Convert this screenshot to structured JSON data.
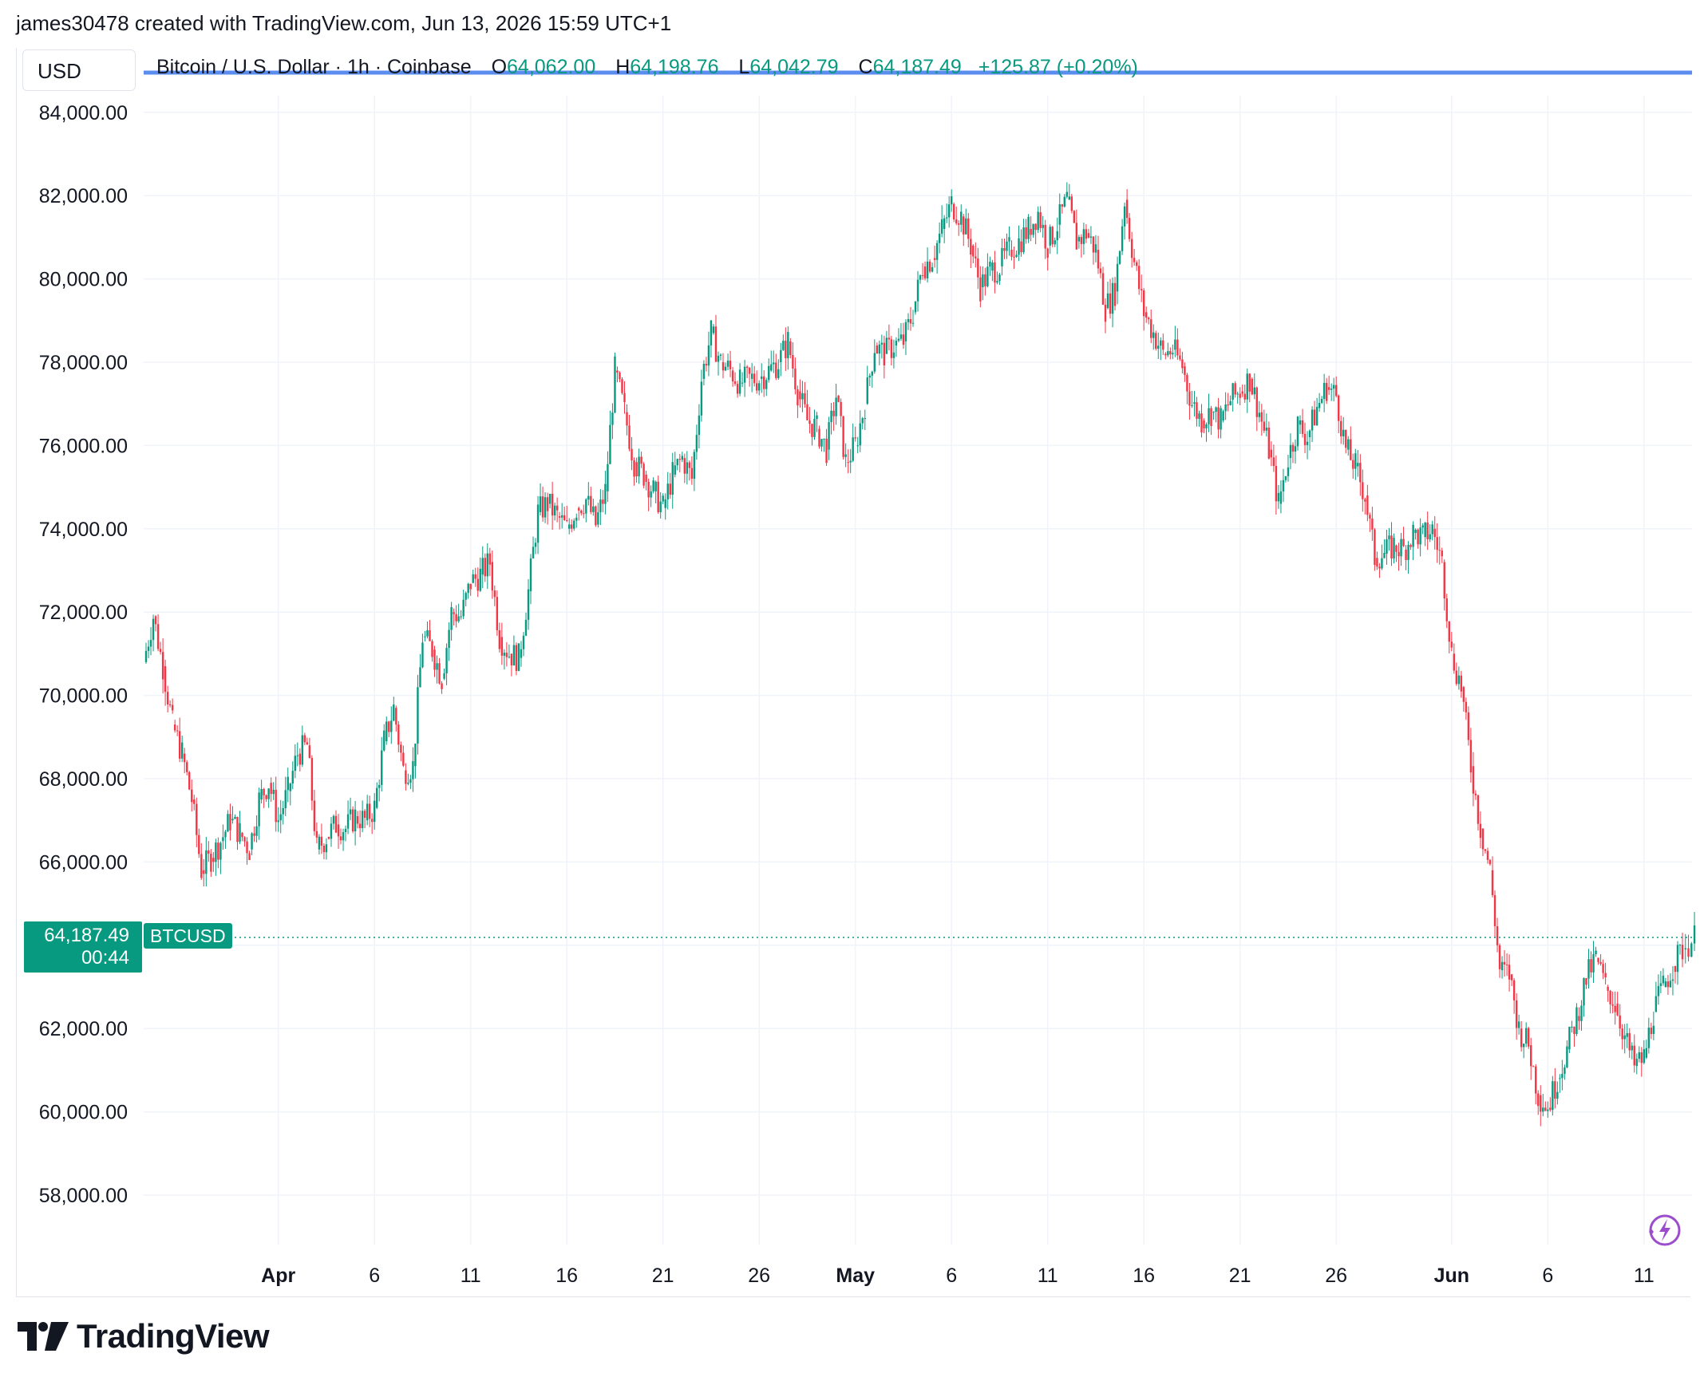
{
  "header": {
    "attribution": "james30478 created with TradingView.com, Jun 13, 2026 15:59 UTC+1"
  },
  "currency_label": "USD",
  "legend": {
    "symbol_name": "Bitcoin / U.S. Dollar · 1h · Coinbase",
    "open_label": "O",
    "open": "64,062.00",
    "high_label": "H",
    "high": "64,198.76",
    "low_label": "L",
    "low": "64,042.79",
    "close_label": "C",
    "close": "64,187.49",
    "change": "+125.87 (+0.20%)"
  },
  "price_tag": {
    "price": "64,187.49",
    "countdown": "00:44",
    "symbol": "BTCUSD"
  },
  "brand": {
    "name": "TradingView"
  },
  "colors": {
    "up": "#089981",
    "down": "#f23645",
    "price_line": "#089981",
    "header_line": "#5b8def",
    "grid": "#f0f3fa"
  },
  "chart_data": {
    "type": "candlestick",
    "interval": "1h",
    "ylim": [
      56500,
      85000
    ],
    "y_ticks": [
      58000,
      60000,
      62000,
      64000,
      66000,
      68000,
      70000,
      72000,
      74000,
      76000,
      78000,
      80000,
      82000,
      84000
    ],
    "y_tick_labels": [
      "58,000.00",
      "60,000.00",
      "62,000.00",
      "",
      "66,000.00",
      "68,000.00",
      "70,000.00",
      "72,000.00",
      "74,000.00",
      "76,000.00",
      "78,000.00",
      "80,000.00",
      "82,000.00",
      "84,000.00"
    ],
    "x_ticks": [
      {
        "date": "2026-04-01",
        "label": "Apr"
      },
      {
        "date": "2026-04-06",
        "label": "6"
      },
      {
        "date": "2026-04-11",
        "label": "11"
      },
      {
        "date": "2026-04-16",
        "label": "16"
      },
      {
        "date": "2026-04-21",
        "label": "21"
      },
      {
        "date": "2026-04-26",
        "label": "26"
      },
      {
        "date": "2026-05-01",
        "label": "May"
      },
      {
        "date": "2026-05-06",
        "label": "6"
      },
      {
        "date": "2026-05-11",
        "label": "11"
      },
      {
        "date": "2026-05-16",
        "label": "16"
      },
      {
        "date": "2026-05-21",
        "label": "21"
      },
      {
        "date": "2026-05-26",
        "label": "26"
      },
      {
        "date": "2026-06-01",
        "label": "Jun"
      },
      {
        "date": "2026-06-06",
        "label": "6"
      },
      {
        "date": "2026-06-11",
        "label": "11"
      }
    ],
    "x_range": [
      "2026-03-25",
      "2026-06-13"
    ],
    "last_price": 64187.49,
    "series_path": [
      {
        "date": "2026-03-25",
        "close": 70800
      },
      {
        "date": "2026-03-25T12:00",
        "close": 71900
      },
      {
        "date": "2026-03-26",
        "close": 70700
      },
      {
        "date": "2026-03-26T12:00",
        "close": 69300
      },
      {
        "date": "2026-03-27",
        "close": 68600
      },
      {
        "date": "2026-03-27T12:00",
        "close": 67500
      },
      {
        "date": "2026-03-28",
        "close": 65800
      },
      {
        "date": "2026-03-28T12:00",
        "close": 66100
      },
      {
        "date": "2026-03-29",
        "close": 66500
      },
      {
        "date": "2026-03-29T12:00",
        "close": 67000
      },
      {
        "date": "2026-03-30",
        "close": 66700
      },
      {
        "date": "2026-03-30T12:00",
        "close": 66300
      },
      {
        "date": "2026-03-31",
        "close": 67500
      },
      {
        "date": "2026-03-31T12:00",
        "close": 67900
      },
      {
        "date": "2026-04-01",
        "close": 67000
      },
      {
        "date": "2026-04-01T12:00",
        "close": 67700
      },
      {
        "date": "2026-04-02",
        "close": 68600
      },
      {
        "date": "2026-04-02T12:00",
        "close": 68800
      },
      {
        "date": "2026-04-03",
        "close": 66300
      },
      {
        "date": "2026-04-03T12:00",
        "close": 66600
      },
      {
        "date": "2026-04-04",
        "close": 66900
      },
      {
        "date": "2026-04-04T12:00",
        "close": 66800
      },
      {
        "date": "2026-04-05",
        "close": 67100
      },
      {
        "date": "2026-04-05T12:00",
        "close": 67000
      },
      {
        "date": "2026-04-06",
        "close": 67300
      },
      {
        "date": "2026-04-06T12:00",
        "close": 68900
      },
      {
        "date": "2026-04-07",
        "close": 69700
      },
      {
        "date": "2026-04-07T12:00",
        "close": 68200
      },
      {
        "date": "2026-04-08",
        "close": 68300
      },
      {
        "date": "2026-04-08T12:00",
        "close": 71400
      },
      {
        "date": "2026-04-09",
        "close": 71100
      },
      {
        "date": "2026-04-09T12:00",
        "close": 70400
      },
      {
        "date": "2026-04-10",
        "close": 72000
      },
      {
        "date": "2026-04-10T12:00",
        "close": 71900
      },
      {
        "date": "2026-04-11",
        "close": 72700
      },
      {
        "date": "2026-04-11T12:00",
        "close": 72900
      },
      {
        "date": "2026-04-12",
        "close": 73200
      },
      {
        "date": "2026-04-12T12:00",
        "close": 71400
      },
      {
        "date": "2026-04-13",
        "close": 71000
      },
      {
        "date": "2026-04-13T12:00",
        "close": 70900
      },
      {
        "date": "2026-04-14",
        "close": 72500
      },
      {
        "date": "2026-04-14T12:00",
        "close": 74400
      },
      {
        "date": "2026-04-15",
        "close": 74600
      },
      {
        "date": "2026-04-15T12:00",
        "close": 74300
      },
      {
        "date": "2026-04-16",
        "close": 74000
      },
      {
        "date": "2026-04-16T12:00",
        "close": 74500
      },
      {
        "date": "2026-04-17",
        "close": 74700
      },
      {
        "date": "2026-04-17T12:00",
        "close": 74100
      },
      {
        "date": "2026-04-18",
        "close": 74900
      },
      {
        "date": "2026-04-18T12:00",
        "close": 77800
      },
      {
        "date": "2026-04-19",
        "close": 76800
      },
      {
        "date": "2026-04-19T12:00",
        "close": 75600
      },
      {
        "date": "2026-04-20",
        "close": 75300
      },
      {
        "date": "2026-04-20T12:00",
        "close": 74900
      },
      {
        "date": "2026-04-21",
        "close": 74500
      },
      {
        "date": "2026-04-21T12:00",
        "close": 75300
      },
      {
        "date": "2026-04-22",
        "close": 75700
      },
      {
        "date": "2026-04-22T12:00",
        "close": 75200
      },
      {
        "date": "2026-04-23",
        "close": 77600
      },
      {
        "date": "2026-04-23T12:00",
        "close": 78700
      },
      {
        "date": "2026-04-24",
        "close": 78000
      },
      {
        "date": "2026-04-24T12:00",
        "close": 77800
      },
      {
        "date": "2026-04-25",
        "close": 77500
      },
      {
        "date": "2026-04-25T12:00",
        "close": 77600
      },
      {
        "date": "2026-04-26",
        "close": 77600
      },
      {
        "date": "2026-04-26T12:00",
        "close": 77800
      },
      {
        "date": "2026-04-27",
        "close": 78000
      },
      {
        "date": "2026-04-27T12:00",
        "close": 78500
      },
      {
        "date": "2026-04-28",
        "close": 77300
      },
      {
        "date": "2026-04-28T12:00",
        "close": 76600
      },
      {
        "date": "2026-04-29",
        "close": 76400
      },
      {
        "date": "2026-04-29T12:00",
        "close": 75900
      },
      {
        "date": "2026-04-30",
        "close": 77200
      },
      {
        "date": "2026-04-30T12:00",
        "close": 75600
      },
      {
        "date": "2026-05-01",
        "close": 76000
      },
      {
        "date": "2026-05-01T12:00",
        "close": 77000
      },
      {
        "date": "2026-05-02",
        "close": 78400
      },
      {
        "date": "2026-05-02T12:00",
        "close": 78200
      },
      {
        "date": "2026-05-03",
        "close": 78400
      },
      {
        "date": "2026-05-03T12:00",
        "close": 78500
      },
      {
        "date": "2026-05-04",
        "close": 79200
      },
      {
        "date": "2026-05-04T12:00",
        "close": 80300
      },
      {
        "date": "2026-05-05",
        "close": 80500
      },
      {
        "date": "2026-05-05T12:00",
        "close": 81200
      },
      {
        "date": "2026-05-06",
        "close": 81800
      },
      {
        "date": "2026-05-06T12:00",
        "close": 81500
      },
      {
        "date": "2026-05-07",
        "close": 80800
      },
      {
        "date": "2026-05-07T12:00",
        "close": 79800
      },
      {
        "date": "2026-05-08",
        "close": 80200
      },
      {
        "date": "2026-05-08T12:00",
        "close": 80300
      },
      {
        "date": "2026-05-09",
        "close": 80700
      },
      {
        "date": "2026-05-09T12:00",
        "close": 80900
      },
      {
        "date": "2026-05-10",
        "close": 81200
      },
      {
        "date": "2026-05-10T12:00",
        "close": 81600
      },
      {
        "date": "2026-05-11",
        "close": 80800
      },
      {
        "date": "2026-05-11T12:00",
        "close": 81300
      },
      {
        "date": "2026-05-12",
        "close": 81900
      },
      {
        "date": "2026-05-12T12:00",
        "close": 80900
      },
      {
        "date": "2026-05-13",
        "close": 81100
      },
      {
        "date": "2026-05-13T12:00",
        "close": 80700
      },
      {
        "date": "2026-05-14",
        "close": 79300
      },
      {
        "date": "2026-05-14T12:00",
        "close": 79700
      },
      {
        "date": "2026-05-15",
        "close": 81900
      },
      {
        "date": "2026-05-15T12:00",
        "close": 80400
      },
      {
        "date": "2026-05-16",
        "close": 79200
      },
      {
        "date": "2026-05-16T12:00",
        "close": 78700
      },
      {
        "date": "2026-05-17",
        "close": 78200
      },
      {
        "date": "2026-05-17T12:00",
        "close": 78300
      },
      {
        "date": "2026-05-18",
        "close": 77900
      },
      {
        "date": "2026-05-18T12:00",
        "close": 77000
      },
      {
        "date": "2026-05-19",
        "close": 76600
      },
      {
        "date": "2026-05-19T12:00",
        "close": 76800
      },
      {
        "date": "2026-05-20",
        "close": 76600
      },
      {
        "date": "2026-05-20T12:00",
        "close": 77100
      },
      {
        "date": "2026-05-21",
        "close": 77300
      },
      {
        "date": "2026-05-21T12:00",
        "close": 77600
      },
      {
        "date": "2026-05-22",
        "close": 76800
      },
      {
        "date": "2026-05-22T12:00",
        "close": 75900
      },
      {
        "date": "2026-05-23",
        "close": 74600
      },
      {
        "date": "2026-05-23T12:00",
        "close": 75700
      },
      {
        "date": "2026-05-24",
        "close": 76500
      },
      {
        "date": "2026-05-24T12:00",
        "close": 76200
      },
      {
        "date": "2026-05-25",
        "close": 76900
      },
      {
        "date": "2026-05-25T12:00",
        "close": 77400
      },
      {
        "date": "2026-05-26",
        "close": 77200
      },
      {
        "date": "2026-05-26T12:00",
        "close": 75900
      },
      {
        "date": "2026-05-27",
        "close": 75500
      },
      {
        "date": "2026-05-27T12:00",
        "close": 74800
      },
      {
        "date": "2026-05-28",
        "close": 73300
      },
      {
        "date": "2026-05-28T12:00",
        "close": 73400
      },
      {
        "date": "2026-05-29",
        "close": 73600
      },
      {
        "date": "2026-05-29T12:00",
        "close": 73500
      },
      {
        "date": "2026-05-30",
        "close": 73900
      },
      {
        "date": "2026-05-30T12:00",
        "close": 73800
      },
      {
        "date": "2026-05-31",
        "close": 74000
      },
      {
        "date": "2026-05-31T12:00",
        "close": 73200
      },
      {
        "date": "2026-06-01",
        "close": 71000
      },
      {
        "date": "2026-06-01T12:00",
        "close": 70200
      },
      {
        "date": "2026-06-02",
        "close": 68300
      },
      {
        "date": "2026-06-02T12:00",
        "close": 66800
      },
      {
        "date": "2026-06-03",
        "close": 65800
      },
      {
        "date": "2026-06-03T12:00",
        "close": 63400
      },
      {
        "date": "2026-06-04",
        "close": 63300
      },
      {
        "date": "2026-06-04T12:00",
        "close": 62000
      },
      {
        "date": "2026-06-05",
        "close": 61600
      },
      {
        "date": "2026-06-05T12:00",
        "close": 60400
      },
      {
        "date": "2026-06-06",
        "close": 60100
      },
      {
        "date": "2026-06-06T12:00",
        "close": 60800
      },
      {
        "date": "2026-06-07",
        "close": 61500
      },
      {
        "date": "2026-06-07T12:00",
        "close": 62300
      },
      {
        "date": "2026-06-08",
        "close": 63200
      },
      {
        "date": "2026-06-08T12:00",
        "close": 63700
      },
      {
        "date": "2026-06-09",
        "close": 63000
      },
      {
        "date": "2026-06-09T12:00",
        "close": 62600
      },
      {
        "date": "2026-06-10",
        "close": 61800
      },
      {
        "date": "2026-06-10T12:00",
        "close": 61100
      },
      {
        "date": "2026-06-11",
        "close": 61300
      },
      {
        "date": "2026-06-11T12:00",
        "close": 62400
      },
      {
        "date": "2026-06-12",
        "close": 63000
      },
      {
        "date": "2026-06-12T12:00",
        "close": 63500
      },
      {
        "date": "2026-06-13",
        "close": 63900
      },
      {
        "date": "2026-06-13T15:00",
        "close": 64187.49
      }
    ]
  }
}
